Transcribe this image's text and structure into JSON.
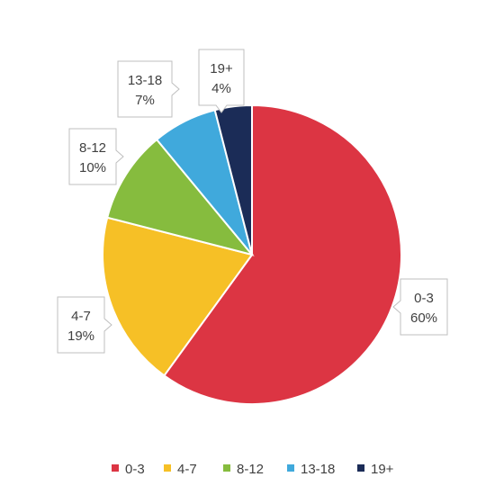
{
  "chart_data": {
    "type": "pie",
    "categories": [
      "0-3",
      "4-7",
      "8-12",
      "13-18",
      "19+"
    ],
    "values": [
      60,
      19,
      10,
      7,
      4
    ],
    "value_labels": [
      "60%",
      "19%",
      "10%",
      "7%",
      "4%"
    ],
    "colors": [
      "#dc3543",
      "#f6c026",
      "#86bc3e",
      "#40a9dc",
      "#1b2c57"
    ],
    "legend": {
      "position": "bottom"
    },
    "title": ""
  }
}
